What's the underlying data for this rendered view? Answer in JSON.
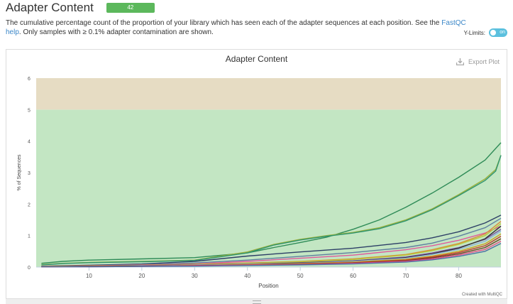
{
  "header": {
    "title": "Adapter Content",
    "badge": "42",
    "description_pre": "The cumulative percentage count of the proportion of your library which has seen each of the adapter sequences at each position. See the ",
    "description_link1": "FastQC",
    "description_line2_link": "help",
    "description_post": ". Only samples with ≥ 0.1% adapter contamination are shown.",
    "ylimits_label": "Y-Limits:",
    "toggle_label": "on"
  },
  "chart_header": {
    "title": "Adapter Content",
    "export_label": "Export Plot",
    "credit": "Created with MultiQC"
  },
  "chart_data": {
    "type": "line",
    "title": "Adapter Content",
    "xlabel": "Position",
    "ylabel": "% of Sequences",
    "xlim": [
      0,
      88
    ],
    "ylim": [
      0,
      6
    ],
    "x_ticks": [
      10,
      20,
      30,
      40,
      50,
      60,
      70,
      80
    ],
    "y_ticks": [
      0,
      1,
      2,
      3,
      4,
      5,
      6
    ],
    "bands": [
      {
        "from": 0,
        "to": 5,
        "color": "#c3e6c3"
      },
      {
        "from": 5,
        "to": 6,
        "color": "#e6dcc3"
      }
    ],
    "grid": false,
    "series": [
      {
        "color": "#2e8b57",
        "x": [
          1,
          5,
          10,
          20,
          30,
          40,
          45,
          50,
          55,
          60,
          65,
          70,
          75,
          80,
          85,
          88
        ],
        "y": [
          0.12,
          0.18,
          0.22,
          0.26,
          0.3,
          0.45,
          0.62,
          0.78,
          0.95,
          1.2,
          1.5,
          1.9,
          2.35,
          2.85,
          3.4,
          3.95
        ]
      },
      {
        "color": "#9ab03c",
        "x": [
          1,
          5,
          10,
          20,
          30,
          40,
          45,
          50,
          55,
          60,
          65,
          70,
          75,
          80,
          85,
          87,
          88
        ],
        "y": [
          0.08,
          0.12,
          0.15,
          0.18,
          0.22,
          0.48,
          0.72,
          0.88,
          1.0,
          1.1,
          1.25,
          1.5,
          1.85,
          2.3,
          2.8,
          3.1,
          3.55
        ]
      },
      {
        "color": "#2f9470",
        "x": [
          1,
          5,
          10,
          20,
          30,
          40,
          45,
          50,
          55,
          60,
          65,
          70,
          75,
          80,
          85,
          87,
          88
        ],
        "y": [
          0.07,
          0.11,
          0.14,
          0.17,
          0.21,
          0.45,
          0.7,
          0.86,
          0.98,
          1.08,
          1.22,
          1.47,
          1.82,
          2.27,
          2.75,
          3.05,
          3.55
        ]
      },
      {
        "color": "#2c3e66",
        "x": [
          1,
          10,
          20,
          30,
          40,
          50,
          60,
          70,
          75,
          80,
          85,
          88
        ],
        "y": [
          0.03,
          0.06,
          0.1,
          0.18,
          0.35,
          0.48,
          0.6,
          0.78,
          0.93,
          1.12,
          1.4,
          1.65
        ]
      },
      {
        "color": "#5f7fa0",
        "x": [
          1,
          10,
          20,
          30,
          40,
          50,
          60,
          70,
          75,
          80,
          85,
          88
        ],
        "y": [
          0.02,
          0.05,
          0.08,
          0.13,
          0.22,
          0.34,
          0.46,
          0.62,
          0.76,
          0.98,
          1.25,
          1.55
        ]
      },
      {
        "color": "#e05a9b",
        "x": [
          1,
          10,
          20,
          30,
          40,
          50,
          60,
          70,
          75,
          80,
          85,
          88
        ],
        "y": [
          0.02,
          0.04,
          0.07,
          0.1,
          0.18,
          0.28,
          0.38,
          0.55,
          0.68,
          0.85,
          1.08,
          1.3
        ]
      },
      {
        "color": "#d98c3a",
        "x": [
          1,
          10,
          20,
          30,
          40,
          50,
          60,
          70,
          75,
          80,
          85,
          88
        ],
        "y": [
          0.02,
          0.04,
          0.06,
          0.09,
          0.13,
          0.18,
          0.26,
          0.4,
          0.55,
          0.75,
          1.05,
          1.45
        ]
      },
      {
        "color": "#b7c93a",
        "x": [
          1,
          10,
          20,
          30,
          40,
          50,
          60,
          70,
          75,
          80,
          85,
          88
        ],
        "y": [
          0.02,
          0.03,
          0.05,
          0.08,
          0.12,
          0.17,
          0.24,
          0.38,
          0.52,
          0.72,
          1.0,
          1.38
        ]
      },
      {
        "color": "#7a4fa0",
        "x": [
          1,
          10,
          20,
          30,
          40,
          50,
          60,
          70,
          75,
          80,
          85,
          88
        ],
        "y": [
          0.01,
          0.03,
          0.05,
          0.07,
          0.1,
          0.14,
          0.2,
          0.32,
          0.45,
          0.62,
          0.88,
          1.2
        ]
      },
      {
        "color": "#333333",
        "x": [
          1,
          10,
          20,
          30,
          40,
          50,
          60,
          70,
          75,
          80,
          85,
          88
        ],
        "y": [
          0.01,
          0.02,
          0.04,
          0.06,
          0.09,
          0.13,
          0.19,
          0.3,
          0.42,
          0.6,
          0.9,
          1.3
        ]
      },
      {
        "color": "#8fb4d8",
        "x": [
          1,
          10,
          20,
          30,
          40,
          50,
          60,
          70,
          75,
          80,
          85,
          88
        ],
        "y": [
          0.01,
          0.02,
          0.04,
          0.06,
          0.09,
          0.12,
          0.18,
          0.28,
          0.4,
          0.56,
          0.82,
          1.15
        ]
      },
      {
        "color": "#c9a227",
        "x": [
          1,
          10,
          20,
          30,
          40,
          50,
          60,
          70,
          75,
          80,
          85,
          88
        ],
        "y": [
          0.01,
          0.02,
          0.03,
          0.05,
          0.08,
          0.11,
          0.16,
          0.25,
          0.35,
          0.5,
          0.74,
          1.05
        ]
      },
      {
        "color": "#c0392b",
        "x": [
          1,
          10,
          20,
          30,
          40,
          50,
          60,
          70,
          75,
          80,
          85,
          88
        ],
        "y": [
          0.01,
          0.02,
          0.03,
          0.05,
          0.07,
          0.1,
          0.14,
          0.22,
          0.32,
          0.46,
          0.68,
          0.98
        ]
      },
      {
        "color": "#6b4226",
        "x": [
          1,
          10,
          20,
          30,
          40,
          50,
          60,
          70,
          75,
          80,
          85,
          88
        ],
        "y": [
          0.01,
          0.02,
          0.03,
          0.04,
          0.06,
          0.09,
          0.13,
          0.2,
          0.29,
          0.42,
          0.62,
          0.9
        ]
      },
      {
        "color": "#e74c8c",
        "x": [
          1,
          10,
          20,
          30,
          40,
          50,
          60,
          70,
          75,
          80,
          85,
          88
        ],
        "y": [
          0.01,
          0.01,
          0.02,
          0.04,
          0.06,
          0.08,
          0.12,
          0.18,
          0.26,
          0.38,
          0.56,
          0.82
        ]
      },
      {
        "color": "#4a6fa5",
        "x": [
          1,
          10,
          20,
          30,
          40,
          50,
          60,
          70,
          75,
          80,
          85,
          88
        ],
        "y": [
          0.01,
          0.01,
          0.02,
          0.03,
          0.05,
          0.07,
          0.1,
          0.16,
          0.23,
          0.34,
          0.5,
          0.75
        ]
      }
    ]
  }
}
